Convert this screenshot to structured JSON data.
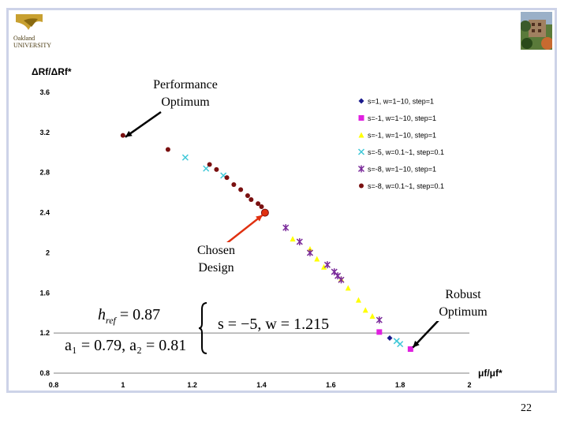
{
  "slide": {
    "number": "22"
  },
  "logo": {
    "line1": "Oakland",
    "line2": "UNIVERSITY"
  },
  "colors": {
    "navy": "#1a1a8c",
    "magenta": "#e020e0",
    "yellow": "#ffff00",
    "cyan": "#40c8d8",
    "purple": "#7a2a9a",
    "darkred": "#7a1010",
    "arrow": "#000000",
    "chosen": "#e03010",
    "frame": "#cdd3e8"
  },
  "labels": {
    "performance_optimum": [
      "Performance",
      "Optimum"
    ],
    "chosen_design": [
      "Chosen",
      "Design"
    ],
    "robust_optimum": [
      "Robust",
      "Optimum"
    ],
    "href_text": "h",
    "href_sub": "ref",
    "href_value": " = 0.87",
    "a_params": "a₁ = 0.79, a₂ = 0.81",
    "sw_params": "s = −5, w = 1.215"
  },
  "chart_data": {
    "type": "scatter",
    "xlabel": "μf/μf*",
    "ylabel": "ΔRf/ΔRf*",
    "xlim": [
      0.8,
      2
    ],
    "ylim": [
      0.8,
      3.6
    ],
    "xticks": [
      "0.8",
      "1",
      "1.2",
      "1.4",
      "1.6",
      "1.8",
      "2"
    ],
    "yticks": [
      "0.8",
      "1.2",
      "1.6",
      "2",
      "2.4",
      "2.8",
      "3.2",
      "3.6"
    ],
    "legend_position": "top-right",
    "series": [
      {
        "name": "s=1, w=1~10, step=1",
        "marker": "diamond",
        "color": "#1a1a8c",
        "points": [
          [
            1.77,
            1.15
          ]
        ]
      },
      {
        "name": "s=-1, w=1~10, step=1",
        "marker": "square",
        "color": "#e020e0",
        "points": [
          [
            1.74,
            1.21
          ],
          [
            1.83,
            1.04
          ]
        ]
      },
      {
        "name": "s=-1, w=1~10, step=1",
        "marker": "triangle",
        "color": "#ffff00",
        "points": [
          [
            1.49,
            2.14
          ],
          [
            1.54,
            2.04
          ],
          [
            1.56,
            1.94
          ],
          [
            1.58,
            1.86
          ],
          [
            1.63,
            1.74
          ],
          [
            1.65,
            1.65
          ],
          [
            1.68,
            1.53
          ],
          [
            1.7,
            1.43
          ],
          [
            1.72,
            1.37
          ]
        ]
      },
      {
        "name": "s=-5, w=0.1~1, step=0.1",
        "marker": "x",
        "color": "#40c8d8",
        "points": [
          [
            1.18,
            2.95
          ],
          [
            1.24,
            2.84
          ],
          [
            1.29,
            2.77
          ],
          [
            1.79,
            1.12
          ],
          [
            1.8,
            1.09
          ]
        ]
      },
      {
        "name": "s=-8, w=1~10, step=1",
        "marker": "star",
        "color": "#7a2a9a",
        "points": [
          [
            1.47,
            2.25
          ],
          [
            1.51,
            2.11
          ],
          [
            1.54,
            2.0
          ],
          [
            1.59,
            1.88
          ],
          [
            1.61,
            1.81
          ],
          [
            1.62,
            1.77
          ],
          [
            1.63,
            1.73
          ],
          [
            1.74,
            1.33
          ]
        ]
      },
      {
        "name": "s=-8, w=0.1~1, step=0.1",
        "marker": "circle",
        "color": "#7a1010",
        "points": [
          [
            1.0,
            3.17
          ],
          [
            1.13,
            3.03
          ],
          [
            1.25,
            2.88
          ],
          [
            1.27,
            2.83
          ],
          [
            1.3,
            2.75
          ],
          [
            1.32,
            2.68
          ],
          [
            1.34,
            2.63
          ],
          [
            1.36,
            2.57
          ],
          [
            1.37,
            2.53
          ],
          [
            1.39,
            2.49
          ],
          [
            1.4,
            2.46
          ]
        ]
      }
    ],
    "highlights": {
      "performance_optimum": [
        1.0,
        3.17
      ],
      "chosen_design": [
        1.41,
        2.4
      ],
      "robust_optimum": [
        1.83,
        1.04
      ]
    }
  }
}
